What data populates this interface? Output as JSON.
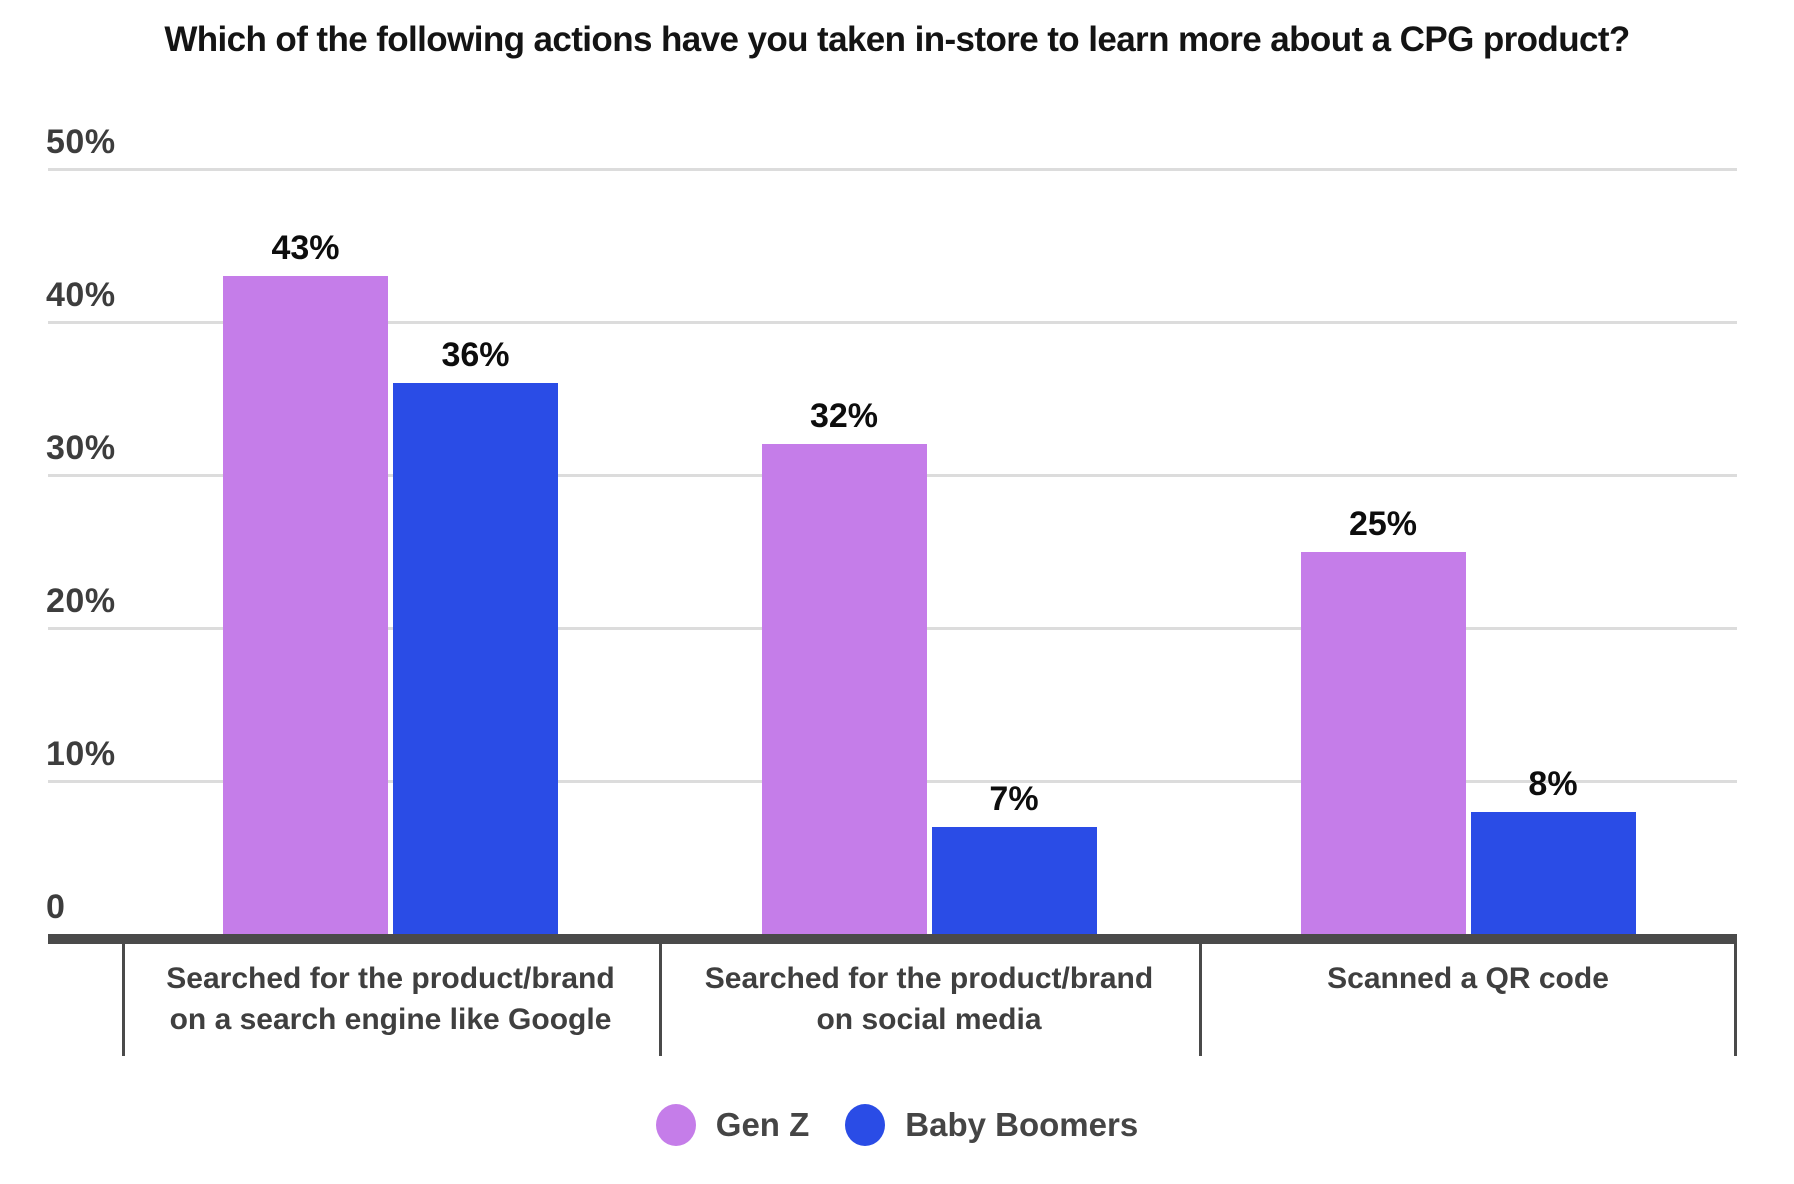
{
  "chart_data": {
    "type": "bar",
    "title": "Which of the following actions have you taken in-store to learn more about a CPG product?",
    "categories": [
      {
        "label": "Searched for the product/brand on a search engine like Google",
        "lines": [
          "Searched for the product/brand",
          "on a search engine like Google"
        ]
      },
      {
        "label": "Searched for the product/brand on social media",
        "lines": [
          "Searched for the product/brand",
          "on social media"
        ]
      },
      {
        "label": "Scanned a QR code",
        "lines": [
          "Scanned a QR code"
        ]
      }
    ],
    "series": [
      {
        "name": "Gen Z",
        "color": "#c57de9",
        "values": [
          43,
          32,
          25
        ]
      },
      {
        "name": "Baby Boomers",
        "color": "#2a4ce6",
        "values": [
          36,
          7,
          8
        ]
      }
    ],
    "data_labels": [
      "43%",
      "36%",
      "32%",
      "7%",
      "25%",
      "8%"
    ],
    "value_suffix": "%",
    "ylim": [
      0,
      50
    ],
    "yticks": [
      {
        "label": "50%",
        "value": 50
      },
      {
        "label": "40%",
        "value": 40
      },
      {
        "label": "30%",
        "value": 30
      },
      {
        "label": "20%",
        "value": 20
      },
      {
        "label": "10%",
        "value": 10
      },
      {
        "label": "0",
        "value": 0
      }
    ],
    "grid": true,
    "legend_position": "bottom"
  },
  "colors": {
    "background": "#ffffff",
    "gridline": "#dcdcdc",
    "axis": "#4a4a4a",
    "title_text": "#141414",
    "tick_text": "#3d3d3d",
    "category_text": "#3f3f3f",
    "data_label_text": "#0d0d0d",
    "legend_text": "#454545"
  }
}
